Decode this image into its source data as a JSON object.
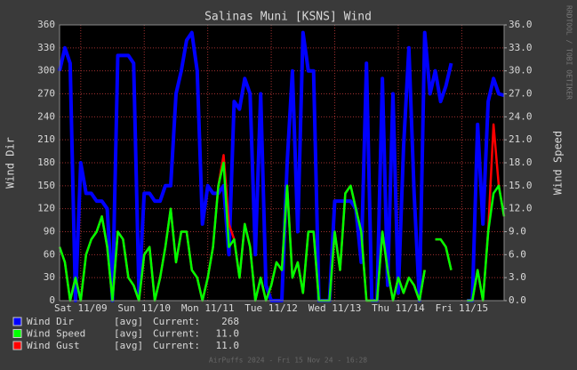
{
  "chart_data": {
    "type": "line",
    "title": "Salinas Muni [KSNS] Wind",
    "ylabel": "Wind Dir",
    "y2label": "Wind Speed",
    "watermark": "RRDTOOL / TOBI OETIKER",
    "footer": "AirPuffs 2024 - Fri 15 Nov 24 - 16:28",
    "legend_stat": "[avg]",
    "current_text": "Current:",
    "grid": true,
    "xlim": [
      0,
      168
    ],
    "xticks": [
      {
        "value": 8,
        "label": "Sat 11/09"
      },
      {
        "value": 32,
        "label": "Sun 11/10"
      },
      {
        "value": 56,
        "label": "Mon 11/11"
      },
      {
        "value": 80,
        "label": "Tue 11/12"
      },
      {
        "value": 104,
        "label": "Wed 11/13"
      },
      {
        "value": 128,
        "label": "Thu 11/14"
      },
      {
        "value": 152,
        "label": "Fri 11/15"
      }
    ],
    "ylim": [
      0,
      360
    ],
    "yticks": [
      0,
      30,
      60,
      90,
      120,
      150,
      180,
      210,
      240,
      270,
      300,
      330,
      360
    ],
    "y2lim": [
      0,
      36
    ],
    "y2ticks": [
      {
        "value": 0,
        "label": "0.0"
      },
      {
        "value": 3,
        "label": "3.0"
      },
      {
        "value": 6,
        "label": "6.0"
      },
      {
        "value": 9,
        "label": "9.0"
      },
      {
        "value": 12,
        "label": "12.0"
      },
      {
        "value": 15,
        "label": "15.0"
      },
      {
        "value": 18,
        "label": "18.0"
      },
      {
        "value": 21,
        "label": "21.0"
      },
      {
        "value": 24,
        "label": "24.0"
      },
      {
        "value": 27,
        "label": "27.0"
      },
      {
        "value": 30,
        "label": "30.0"
      },
      {
        "value": 33,
        "label": "33.0"
      },
      {
        "value": 36,
        "label": "36.0"
      }
    ],
    "x": [
      0,
      2,
      4,
      6,
      8,
      10,
      12,
      14,
      16,
      18,
      20,
      22,
      24,
      26,
      28,
      30,
      32,
      34,
      36,
      38,
      40,
      42,
      44,
      46,
      48,
      50,
      52,
      54,
      56,
      58,
      60,
      62,
      64,
      66,
      68,
      70,
      72,
      74,
      76,
      78,
      80,
      82,
      84,
      86,
      88,
      90,
      92,
      94,
      96,
      98,
      100,
      102,
      104,
      106,
      108,
      110,
      112,
      114,
      116,
      118,
      120,
      122,
      124,
      126,
      128,
      130,
      132,
      134,
      136,
      138,
      140,
      142,
      144,
      146,
      148,
      150,
      152,
      154,
      156,
      158,
      160,
      162,
      164,
      166,
      168
    ],
    "series": [
      {
        "name": "Wind Dir",
        "color": "#0000ff",
        "current": 268,
        "values": [
          300,
          330,
          310,
          0,
          180,
          140,
          140,
          130,
          130,
          120,
          0,
          320,
          320,
          320,
          310,
          10,
          140,
          140,
          130,
          130,
          150,
          150,
          270,
          300,
          340,
          350,
          300,
          100,
          150,
          140,
          140,
          150,
          60,
          260,
          250,
          290,
          270,
          60,
          270,
          20,
          0,
          0,
          0,
          180,
          300,
          90,
          350,
          300,
          300,
          0,
          0,
          0,
          130,
          130,
          130,
          130,
          120,
          50,
          310,
          0,
          0,
          290,
          20,
          270,
          10,
          200,
          330,
          140,
          0,
          350,
          270,
          300,
          260,
          280,
          310,
          null,
          null,
          0,
          0,
          230,
          100,
          260,
          290,
          270,
          268
        ]
      },
      {
        "name": "Wind Gust",
        "color": "#ff0000",
        "axis": "y2",
        "current": {
          "value": 11,
          "label": "11.0"
        },
        "values": [
          7,
          5,
          0,
          3,
          0,
          6,
          8,
          9,
          11,
          7,
          0,
          9,
          8,
          3,
          2,
          0,
          6,
          7,
          0,
          3,
          7,
          12,
          5,
          9,
          9,
          4,
          3,
          0,
          3,
          7,
          15,
          19,
          10,
          8,
          3,
          10,
          7,
          0,
          3,
          0,
          2,
          5,
          4,
          15,
          3,
          5,
          1,
          9,
          9,
          0,
          0,
          0,
          9,
          4,
          14,
          15,
          12,
          9,
          0,
          0,
          0,
          9,
          4,
          0,
          3,
          1,
          3,
          2,
          0,
          4,
          null,
          8,
          8,
          7,
          4,
          null,
          null,
          0,
          0,
          4,
          0,
          9,
          23,
          15,
          11
        ]
      },
      {
        "name": "Wind Speed",
        "color": "#00ff00",
        "axis": "y2",
        "current": {
          "value": 11,
          "label": "11.0"
        },
        "values": [
          7,
          5,
          0,
          3,
          0,
          6,
          8,
          9,
          11,
          7,
          0,
          9,
          8,
          3,
          2,
          0,
          6,
          7,
          0,
          3,
          7,
          12,
          5,
          9,
          9,
          4,
          3,
          0,
          3,
          7,
          15,
          18,
          7,
          8,
          3,
          10,
          7,
          0,
          3,
          0,
          2,
          5,
          4,
          15,
          3,
          5,
          1,
          9,
          9,
          0,
          0,
          0,
          9,
          4,
          14,
          15,
          12,
          9,
          0,
          0,
          0,
          9,
          4,
          0,
          3,
          1,
          3,
          2,
          0,
          4,
          null,
          8,
          8,
          7,
          4,
          null,
          null,
          0,
          0,
          4,
          0,
          9,
          14,
          15,
          11
        ]
      }
    ]
  }
}
